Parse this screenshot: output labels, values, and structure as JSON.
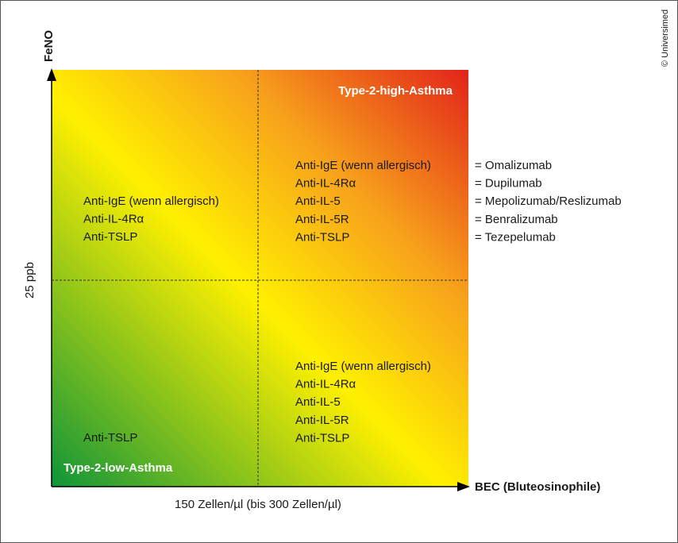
{
  "axes": {
    "y_label": "FeNO",
    "y_threshold": "25 ppb",
    "x_threshold": "150 Zellen/µl (bis 300 Zellen/µl)",
    "x_label": "BEC (Bluteosinophile)"
  },
  "quadrants": {
    "high_label": "Type-2-high-Asthma",
    "low_label": "Type-2-low-Asthma",
    "top_left": [
      "Anti-IgE (wenn allergisch)",
      "Anti-IL-4Rα",
      "Anti-TSLP"
    ],
    "top_right": [
      "Anti-IgE (wenn allergisch)",
      "Anti-IL-4Rα",
      "Anti-IL-5",
      "Anti-IL-5R",
      "Anti-TSLP"
    ],
    "bottom_right": [
      "Anti-IgE (wenn allergisch)",
      "Anti-IL-4Rα",
      "Anti-IL-5",
      "Anti-IL-5R",
      "Anti-TSLP"
    ],
    "bottom_left": [
      "Anti-TSLP"
    ]
  },
  "legend": [
    "= Omalizumab",
    "= Dupilumab",
    "= Mepolizumab/Reslizumab",
    "= Benralizumab",
    "= Tezepelumab"
  ],
  "copyright": "© Universimed"
}
